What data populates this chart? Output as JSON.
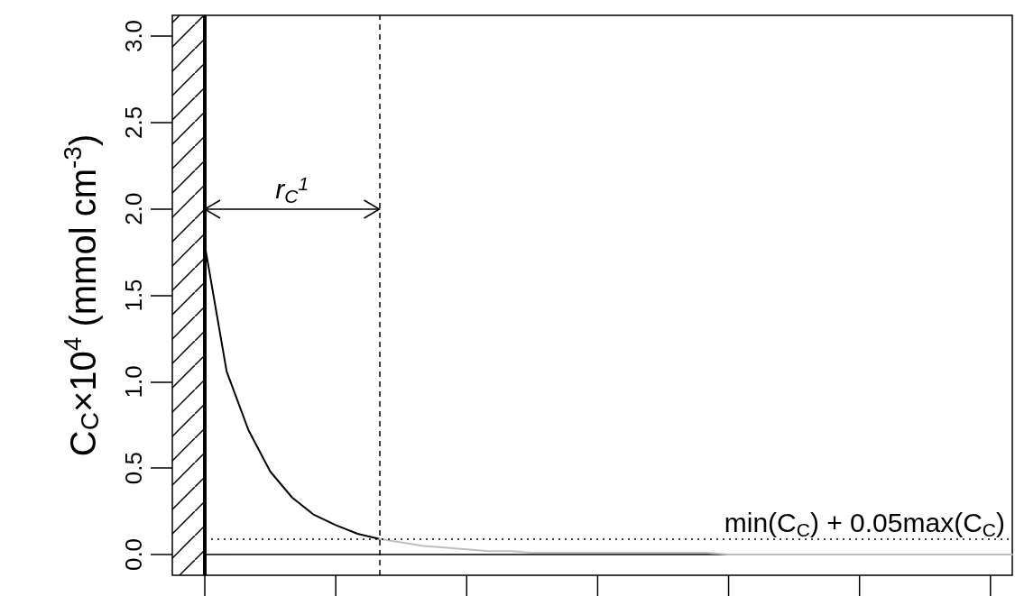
{
  "chart_data": {
    "type": "line",
    "ylabel": "C$_{C}$×10$^{4}$ (mmol cm$^{-3}$)",
    "categories": [
      null,
      null,
      null,
      null,
      null,
      null,
      null,
      null,
      null,
      null,
      null,
      null,
      null,
      null,
      null,
      null,
      null,
      null,
      null,
      null,
      null,
      null,
      null,
      null,
      null,
      null,
      null,
      null,
      null,
      null,
      null,
      null,
      null,
      null,
      null,
      null,
      null,
      null
    ],
    "ylim": [
      -0.12,
      3.12
    ],
    "yticks": [
      {
        "value": 0,
        "label": "0.0"
      },
      {
        "value": 0.5,
        "label": "0.5"
      },
      {
        "value": 1,
        "label": "1.0"
      },
      {
        "value": 1.5,
        "label": "1.5"
      },
      {
        "value": 2,
        "label": "2.0"
      },
      {
        "value": 2.5,
        "label": "2.5"
      },
      {
        "value": 3,
        "label": "3.0"
      }
    ],
    "tick_labels": "y",
    "grid": false,
    "series": [
      {
        "color": "#000000",
        "values": [
          1.79,
          1.06,
          0.72,
          0.48,
          0.33,
          0.23,
          0.17,
          0.12,
          0.09,
          null,
          null,
          null,
          null,
          null,
          null,
          null,
          null,
          null,
          null,
          null,
          null,
          null,
          null,
          null,
          null,
          null,
          null,
          null,
          null,
          null,
          null,
          null,
          null,
          null,
          null,
          null,
          null,
          null
        ]
      },
      {
        "color": "#bebebe",
        "values": [
          null,
          null,
          null,
          null,
          null,
          null,
          null,
          null,
          0.09,
          0.07,
          0.05,
          0.04,
          0.03,
          0.02,
          0.02,
          0.01,
          0.01,
          0.01,
          0.01,
          0.01,
          0.01,
          0.01,
          0.01,
          0.01,
          0,
          0,
          0,
          0,
          0,
          0,
          0,
          0,
          0,
          0,
          0,
          0,
          0,
          0
        ]
      }
    ],
    "ref_lines": [
      {
        "axis": "y",
        "value": 0.09,
        "label": "min(C$_{C}$) + 0.05max(C$_{C}$)",
        "line_style": "dotted"
      }
    ],
    "annotations": [
      "r$_{C}$$^{1}$"
    ]
  }
}
